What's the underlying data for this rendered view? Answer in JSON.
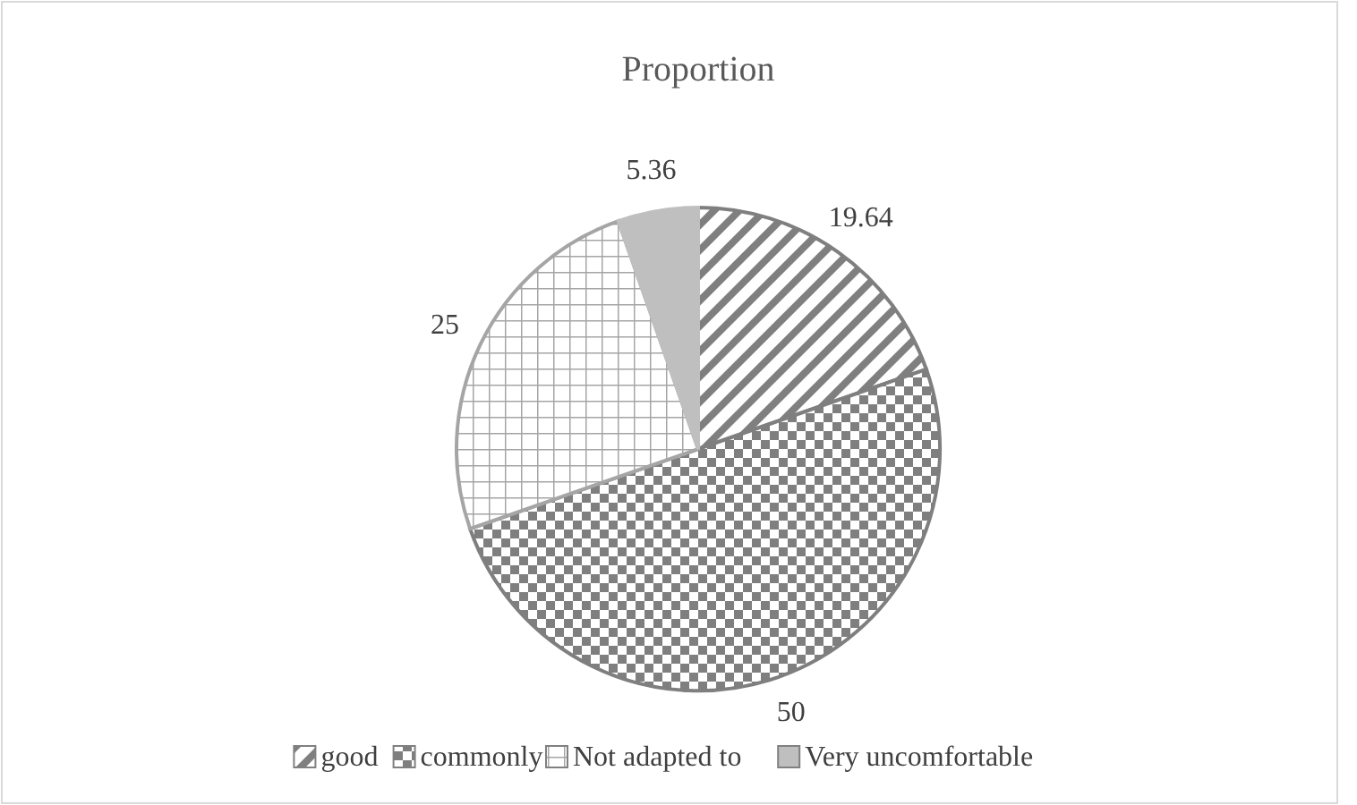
{
  "chart_data": {
    "type": "pie",
    "title": "Proportion",
    "categories": [
      "good",
      "commonly",
      "Not adapted to",
      "Very uncomfortable"
    ],
    "values": [
      19.64,
      50,
      25,
      5.36
    ],
    "colors": [
      "#7f7f7f",
      "#7f7f7f",
      "#a5a5a5",
      "#bfbfbf"
    ],
    "data_labels": true,
    "legend": "bottom"
  }
}
